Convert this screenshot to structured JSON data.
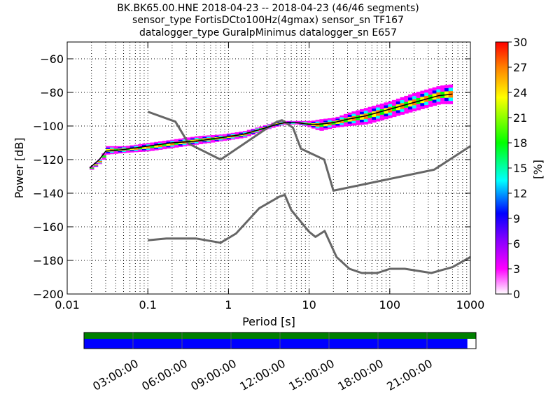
{
  "chart_data": {
    "type": "heatmap",
    "title_lines": [
      "BK.BK65.00.HNE   2018-04-23 -- 2018-04-23  (46/46 segments)",
      "sensor_type FortisDCto100Hz(4gmax) sensor_sn TF167",
      "datalogger_type GuralpMinimus datalogger_sn E657"
    ],
    "xlabel": "Period [s]",
    "ylabel": "Power [dB]",
    "x_scale": "log",
    "xlim": [
      0.01,
      1000
    ],
    "ylim": [
      -200,
      -50
    ],
    "x_ticks": [
      0.01,
      0.1,
      1,
      10,
      100,
      1000
    ],
    "x_tick_labels": [
      "0.01",
      "0.1",
      "1",
      "10",
      "100",
      "1000"
    ],
    "y_ticks": [
      -200,
      -180,
      -160,
      -140,
      -120,
      -100,
      -80,
      -60
    ],
    "y_tick_labels": [
      "−200",
      "−180",
      "−160",
      "−140",
      "−120",
      "−100",
      "−80",
      "−60"
    ],
    "grid": true,
    "colorbar": {
      "label": "[%]",
      "range": [
        0,
        30
      ],
      "ticks": [
        0,
        3,
        6,
        9,
        12,
        15,
        18,
        21,
        24,
        27,
        30
      ],
      "tick_labels": [
        "0",
        "3",
        "6",
        "9",
        "12",
        "15",
        "18",
        "21",
        "24",
        "27",
        "30"
      ],
      "colors": [
        "#ffffff",
        "#ff00ff",
        "#0000ff",
        "#00ffff",
        "#00ff00",
        "#ffff00",
        "#ff8000",
        "#ff0000"
      ]
    },
    "psd_mode_curve": {
      "x": [
        0.019,
        0.025,
        0.03,
        0.05,
        0.1,
        0.2,
        0.4,
        0.8,
        1.5,
        2.5,
        4,
        5,
        7,
        10,
        13,
        20,
        30,
        50,
        100,
        200,
        400,
        600
      ],
      "y": [
        -125,
        -120,
        -115,
        -114,
        -112,
        -110,
        -109,
        -107,
        -105,
        -102,
        -99,
        -98,
        -98,
        -99,
        -99,
        -98,
        -96,
        -94,
        -90,
        -86,
        -82,
        -81
      ]
    },
    "psd_density_band": {
      "x": [
        0.019,
        0.025,
        0.03,
        0.05,
        0.1,
        0.2,
        0.4,
        0.8,
        1.5,
        2.5,
        4,
        5,
        7,
        10,
        13,
        20,
        30,
        50,
        100,
        200,
        400,
        600
      ],
      "y_low": [
        -126,
        -122,
        -117,
        -116,
        -115,
        -113,
        -111,
        -109,
        -107,
        -103,
        -100,
        -99,
        -99,
        -101,
        -103,
        -101,
        -100,
        -99,
        -95,
        -91,
        -87,
        -87
      ],
      "y_high": [
        -124,
        -119,
        -112,
        -112,
        -110,
        -108,
        -106,
        -105,
        -103,
        -100,
        -97,
        -97,
        -97,
        -97,
        -96,
        -95,
        -92,
        -89,
        -85,
        -80,
        -76,
        -75
      ]
    },
    "noise_models": [
      {
        "x": [
          0.1,
          0.17,
          0.4,
          0.8,
          1.24,
          2.4,
          4.3,
          5,
          6,
          10,
          12,
          15.6,
          21.9,
          31.6,
          45,
          70,
          101,
          154,
          328,
          600,
          1000
        ],
        "y": [
          -168,
          -167,
          -167,
          -169.5,
          -164,
          -149,
          -142,
          -141,
          -150,
          -163,
          -166,
          -162.5,
          -178,
          -185,
          -187.5,
          -187.5,
          -185,
          -185,
          -187.5,
          -184,
          -178
        ]
      },
      {
        "x": [
          0.1,
          0.22,
          0.32,
          0.8,
          3.8,
          4.6,
          6.3,
          7.9,
          15.4,
          20,
          354.8,
          1000
        ],
        "y": [
          -91.5,
          -97.4,
          -110.5,
          -120,
          -98,
          -96.5,
          -101,
          -113.5,
          -120,
          -138.5,
          -126,
          -112
        ]
      }
    ]
  },
  "time_coverage": {
    "tick_labels": [
      "03:00:00",
      "06:00:00",
      "09:00:00",
      "12:00:00",
      "15:00:00",
      "18:00:00",
      "21:00:00"
    ],
    "tick_hours": [
      3,
      6,
      9,
      12,
      15,
      18,
      21
    ],
    "span_hours": 24,
    "data_coverage_fraction": 1.0,
    "processed_coverage_fraction": 0.978,
    "colors": {
      "data": "#008000",
      "processed": "#0000ff"
    }
  }
}
